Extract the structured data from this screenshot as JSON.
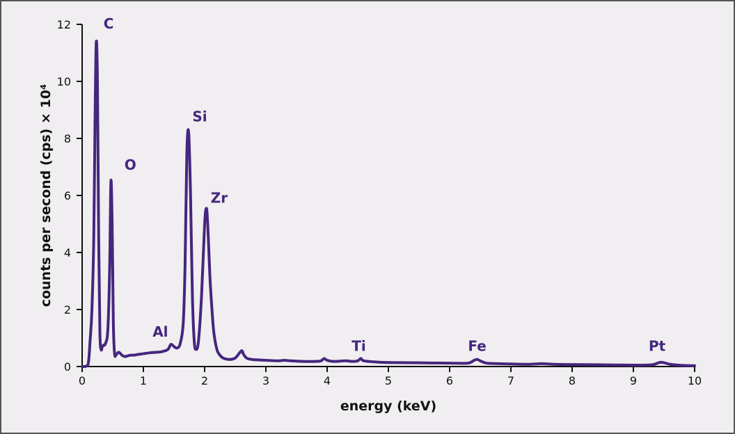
{
  "colors": {
    "series": "#45267e",
    "axis": "#111111",
    "background": "#f0eef0"
  },
  "chart_data": {
    "type": "line",
    "xlabel": "energy (keV)",
    "ylabel": "counts per second (cps) × 10⁴",
    "xlim": [
      0,
      10
    ],
    "ylim": [
      0,
      12
    ],
    "xticks": [
      "0",
      "1",
      "2",
      "3",
      "4",
      "5",
      "6",
      "7",
      "8",
      "9",
      "10"
    ],
    "yticks": [
      "0",
      "2",
      "4",
      "6",
      "8",
      "10",
      "12"
    ],
    "grid": false,
    "legend": "none",
    "series": [
      {
        "x": [
          0.0,
          0.05,
          0.1,
          0.13,
          0.16,
          0.19,
          0.21,
          0.23,
          0.25,
          0.27,
          0.29,
          0.31,
          0.33,
          0.35,
          0.38,
          0.42,
          0.45,
          0.47,
          0.49,
          0.51,
          0.53,
          0.55,
          0.57,
          0.6,
          0.65,
          0.7,
          0.75,
          0.8,
          0.85,
          0.9,
          1.0,
          1.1,
          1.2,
          1.3,
          1.4,
          1.45,
          1.5,
          1.55,
          1.6,
          1.65,
          1.68,
          1.71,
          1.74,
          1.77,
          1.8,
          1.83,
          1.86,
          1.9,
          1.95,
          2.0,
          2.03,
          2.05,
          2.07,
          2.09,
          2.12,
          2.15,
          2.2,
          2.25,
          2.3,
          2.4,
          2.5,
          2.6,
          2.63,
          2.66,
          2.7,
          2.8,
          3.0,
          3.2,
          3.3,
          3.4,
          3.6,
          3.8,
          3.9,
          3.95,
          4.0,
          4.1,
          4.3,
          4.4,
          4.5,
          4.55,
          4.6,
          4.8,
          5.0,
          5.5,
          6.0,
          6.3,
          6.4,
          6.45,
          6.5,
          6.6,
          6.8,
          7.0,
          7.3,
          7.5,
          7.7,
          8.0,
          8.5,
          9.0,
          9.3,
          9.45,
          9.6,
          9.8,
          10.0
        ],
        "values": [
          0.0,
          0.0,
          0.1,
          0.9,
          2.0,
          4.5,
          8.5,
          11.35,
          10.0,
          4.5,
          1.2,
          0.6,
          0.7,
          0.75,
          0.8,
          1.3,
          3.5,
          6.5,
          5.0,
          1.5,
          0.45,
          0.4,
          0.45,
          0.5,
          0.4,
          0.35,
          0.38,
          0.4,
          0.4,
          0.42,
          0.45,
          0.48,
          0.5,
          0.52,
          0.6,
          0.78,
          0.7,
          0.65,
          0.8,
          1.5,
          3.5,
          7.5,
          8.2,
          6.0,
          2.5,
          0.9,
          0.6,
          0.9,
          2.5,
          5.0,
          5.55,
          5.0,
          4.0,
          3.0,
          2.0,
          1.2,
          0.6,
          0.4,
          0.3,
          0.25,
          0.3,
          0.55,
          0.45,
          0.35,
          0.28,
          0.24,
          0.22,
          0.2,
          0.22,
          0.2,
          0.18,
          0.18,
          0.2,
          0.28,
          0.22,
          0.18,
          0.2,
          0.18,
          0.2,
          0.28,
          0.2,
          0.16,
          0.14,
          0.13,
          0.12,
          0.12,
          0.22,
          0.25,
          0.2,
          0.12,
          0.1,
          0.09,
          0.08,
          0.1,
          0.08,
          0.07,
          0.06,
          0.05,
          0.06,
          0.15,
          0.08,
          0.04,
          0.03
        ]
      }
    ],
    "annotations": [
      {
        "text": "C",
        "x": 0.35,
        "y": 11.85
      },
      {
        "text": "O",
        "x": 0.69,
        "y": 6.9
      },
      {
        "text": "Al",
        "x": 1.15,
        "y": 1.05
      },
      {
        "text": "Si",
        "x": 1.8,
        "y": 8.6
      },
      {
        "text": "Zr",
        "x": 2.1,
        "y": 5.75
      },
      {
        "text": "Ti",
        "x": 4.4,
        "y": 0.55
      },
      {
        "text": "Fe",
        "x": 6.3,
        "y": 0.55
      },
      {
        "text": "Pt",
        "x": 9.25,
        "y": 0.55
      }
    ]
  }
}
